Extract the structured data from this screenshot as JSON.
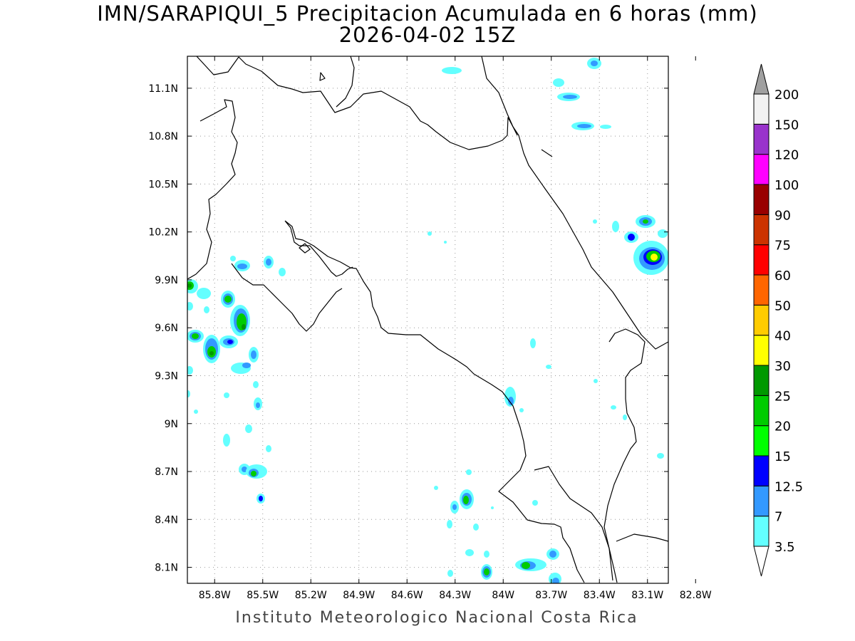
{
  "title": {
    "line1": "IMN/SARAPIQUI_5 Precipitacion Acumulada en 6 horas (mm)",
    "line2": "2026-04-02 15Z"
  },
  "footer": "Instituto Meteorologico Nacional Costa Rica",
  "axes": {
    "lon_labels": [
      "85.8W",
      "85.5W",
      "85.2W",
      "84.9W",
      "84.6W",
      "84.3W",
      "84W",
      "83.7W",
      "83.4W",
      "83.1W",
      "82.8W"
    ],
    "lat_labels": [
      "11.1N",
      "10.8N",
      "10.5N",
      "10.2N",
      "9.9N",
      "9.6N",
      "9.3N",
      "9N",
      "8.7N",
      "8.4N",
      "8.1N"
    ],
    "lon_range": [
      -85.97,
      -82.97
    ],
    "lat_range": [
      8.0,
      11.3
    ],
    "grid": "dotted"
  },
  "legend": {
    "levels": [
      "3.5",
      "7",
      "12.5",
      "15",
      "20",
      "25",
      "30",
      "40",
      "50",
      "60",
      "75",
      "90",
      "100",
      "120",
      "150",
      "200"
    ],
    "colors": [
      "#ffffff",
      "#63ffff",
      "#3399ff",
      "#0000ff",
      "#00ff00",
      "#00cc00",
      "#009900",
      "#ffff00",
      "#ffcc00",
      "#ff6600",
      "#ff0000",
      "#cc3300",
      "#990000",
      "#ff00ff",
      "#9933cc",
      "#f2f2f2",
      "#a0a0a0"
    ]
  }
}
